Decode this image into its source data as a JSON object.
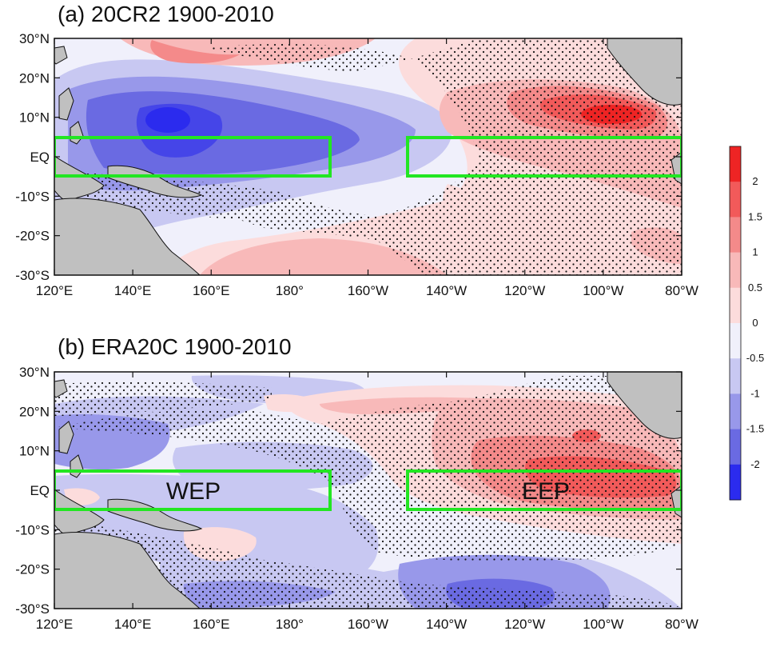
{
  "panels": [
    {
      "id": "a",
      "title": "(a) 20CR2 1900-2010",
      "box_labels": [
        "",
        ""
      ]
    },
    {
      "id": "b",
      "title": "(b) ERA20C 1900-2010",
      "box_labels": [
        "WEP",
        "EEP"
      ]
    }
  ],
  "axes": {
    "lon_ticks": [
      "120°E",
      "140°E",
      "160°E",
      "180°",
      "160°W",
      "140°W",
      "120°W",
      "100°W",
      "80°W"
    ],
    "lat_ticks": [
      "30°N",
      "20°N",
      "10°N",
      "EQ",
      "-10°S",
      "-20°S",
      "-30°S"
    ],
    "lon_range_deg_east": [
      120,
      280
    ],
    "lat_range": [
      -30,
      30
    ]
  },
  "regions": [
    {
      "name": "WEP",
      "lon_deg_east": [
        120,
        190
      ],
      "lat": [
        -5,
        5
      ]
    },
    {
      "name": "EEP",
      "lon_deg_east": [
        210,
        280
      ],
      "lat": [
        -5,
        5
      ]
    }
  ],
  "colorbar": {
    "labels": [
      "2",
      "1.5",
      "1",
      "0.5",
      "0",
      "-0.5",
      "-1",
      "-1.5",
      "-2"
    ],
    "colors": [
      "#ee2424",
      "#f25a5a",
      "#f48a8a",
      "#f8b9b9",
      "#fcdcdc",
      "#f0f0fb",
      "#c8c8f2",
      "#9898ea",
      "#6a6ae2",
      "#2b2bee"
    ]
  },
  "colors": {
    "land": "#c0c0c0",
    "box": "#22e622",
    "stipple": "#111111"
  }
}
